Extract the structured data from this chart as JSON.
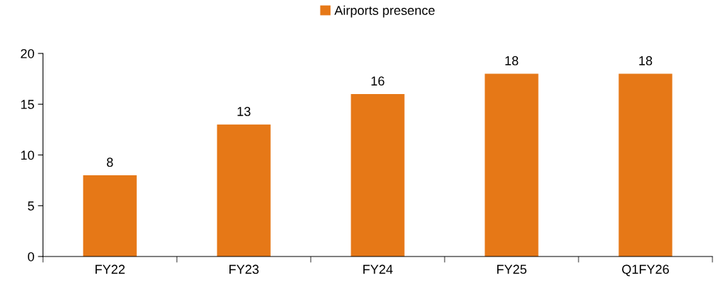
{
  "chart_data": {
    "type": "bar",
    "categories": [
      "FY22",
      "FY23",
      "FY24",
      "FY25",
      "Q1FY26"
    ],
    "series": [
      {
        "name": "Airports presence",
        "color": "#e67817",
        "values": [
          8,
          13,
          16,
          18,
          18
        ]
      }
    ],
    "ylim": [
      0,
      20
    ],
    "yticks": [
      0,
      5,
      10,
      15,
      20
    ],
    "data_labels": true,
    "legend": "top",
    "grid": false
  }
}
